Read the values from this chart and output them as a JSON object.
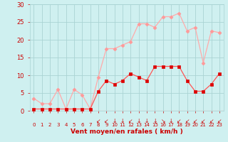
{
  "hours": [
    0,
    1,
    2,
    3,
    4,
    5,
    6,
    7,
    8,
    9,
    10,
    11,
    12,
    13,
    14,
    15,
    16,
    17,
    18,
    19,
    20,
    21,
    22,
    23
  ],
  "vent_moyen": [
    0.5,
    0.5,
    0.5,
    0.5,
    0.5,
    0.5,
    0.5,
    0.5,
    5.5,
    8.5,
    7.5,
    8.5,
    10.5,
    9.5,
    8.5,
    12.5,
    12.5,
    12.5,
    12.5,
    8.5,
    5.5,
    5.5,
    7.5,
    10.5
  ],
  "rafales": [
    3.5,
    2.0,
    2.0,
    6.0,
    0.5,
    6.0,
    4.5,
    0.5,
    9.5,
    17.5,
    17.5,
    18.5,
    19.5,
    24.5,
    24.5,
    23.5,
    26.5,
    26.5,
    27.5,
    22.5,
    23.5,
    13.5,
    22.5,
    22.0
  ],
  "ylabel_ticks": [
    0,
    5,
    10,
    15,
    20,
    25,
    30
  ],
  "xlabel": "Vent moyen/en rafales ( km/h )",
  "bg_color": "#cff0f0",
  "grid_color": "#aad4d4",
  "line_moyen_color": "#ff5555",
  "line_rafales_color": "#ffaaaa",
  "marker_moyen_color": "#dd0000",
  "marker_rafales_color": "#ff9999",
  "label_color": "#cc0000",
  "ylim": [
    0,
    30
  ],
  "xlim": [
    -0.5,
    23.5
  ],
  "arrow_hours": [
    8,
    9,
    10,
    11,
    12,
    13,
    14,
    15,
    16,
    17,
    18,
    19,
    20,
    21,
    22,
    23
  ],
  "arrow_chars": [
    "↙",
    "↙",
    "↓",
    "↓",
    "↙",
    "↓",
    "↓",
    "↓",
    "↘",
    "↓",
    "↙",
    "↙",
    "↙",
    "↙",
    "↙",
    "↙"
  ]
}
